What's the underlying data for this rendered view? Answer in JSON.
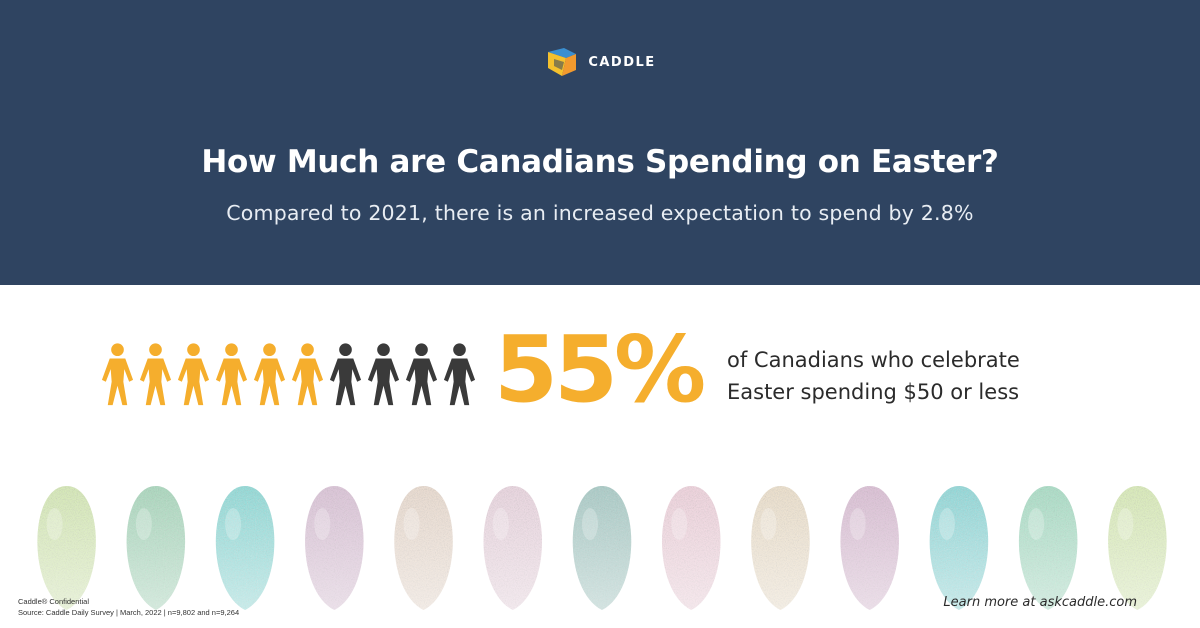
{
  "brand": {
    "name": "CADDLE",
    "logo_icon": "caddle-logo-icon"
  },
  "header": {
    "title": "How Much are Canadians Spending on Easter?",
    "subtitle": "Compared to 2021, there is an increased expectation to spend by 2.8%"
  },
  "stat": {
    "value": "55%",
    "desc_line1": "of Canadians who celebrate",
    "desc_line2": "Easter spending $50 or less",
    "people_total": 10,
    "people_highlighted": 6,
    "highlight_color": "#f5ae2d",
    "base_color": "#3a3a3a",
    "person_icon": "person-icon"
  },
  "colors": {
    "header_bg": "#2f4461",
    "accent": "#f5ae2d"
  },
  "eggs": {
    "icon": "easter-egg-icon",
    "colors": [
      "#d6e9b6",
      "#a9d8bd",
      "#8fdbd8",
      "#dcc4d8",
      "#eadcd0",
      "#ead6e0",
      "#a9ccc7",
      "#efd3dd",
      "#ece0cc",
      "#dcc0d6",
      "#8fd9d9",
      "#a9dec6",
      "#d9ebb8"
    ]
  },
  "footer": {
    "confidential": "Caddle® Confidential",
    "source": "Source: Caddle Daily Survey | March, 2022 | n=9,802 and n=9,264",
    "learn_more": "Learn more at askcaddle.com"
  }
}
